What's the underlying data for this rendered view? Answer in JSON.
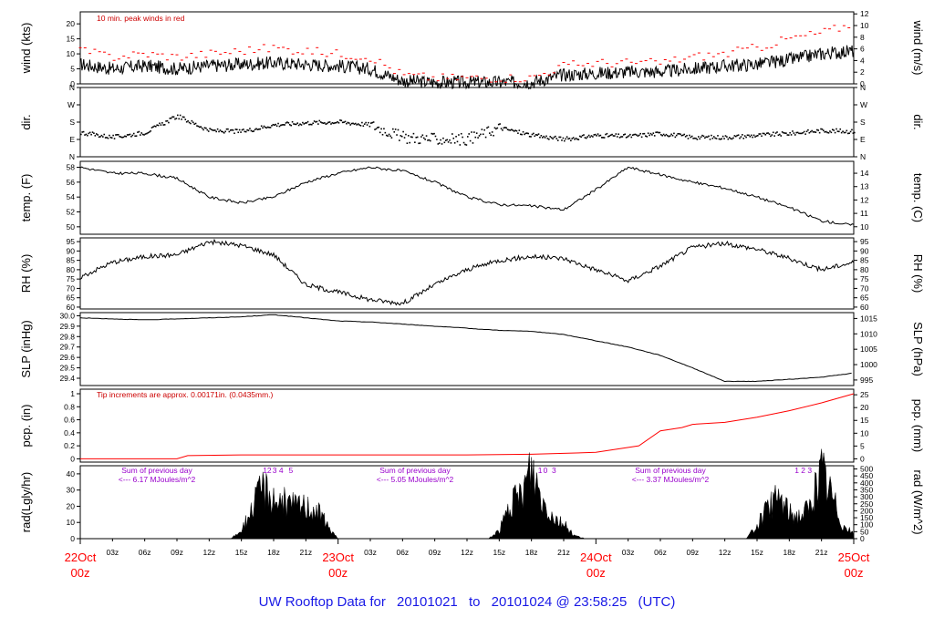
{
  "colors": {
    "frame": "#000000",
    "peak": "#ff0000",
    "precip": "#ff0000",
    "note": "#cc0000",
    "purple": "#9900cc",
    "date": "#ff0000",
    "footer": "#1a1ae6",
    "fill": "#000000"
  },
  "footer": {
    "prefix": "UW Rooftop Data for",
    "start": "20101021",
    "to": "to",
    "end": "20101024 @ 23:58:25",
    "tz": "(UTC)"
  },
  "chart_data": [
    {
      "type": "line",
      "id": "wind",
      "ylabel_left": "wind (kts)",
      "ylabel_right": "wind (m/s)",
      "annotation": "10 min. peak winds in red",
      "ylim": [
        0,
        24
      ],
      "ticks_left": [
        0,
        5,
        10,
        15,
        20
      ],
      "ylim_right": [
        0,
        12.35
      ],
      "ticks_right": [
        0,
        2,
        4,
        6,
        8,
        10,
        12
      ],
      "x": [
        0,
        3,
        6,
        9,
        12,
        15,
        18,
        21,
        24,
        27,
        30,
        33,
        36,
        39,
        42,
        45,
        48,
        51,
        54,
        57,
        60,
        63,
        66,
        69,
        72
      ],
      "series": [
        {
          "name": "wind",
          "values": [
            6.5,
            5,
            6,
            5,
            6,
            6.5,
            7,
            6.5,
            6,
            5,
            1,
            0.5,
            0.5,
            0.5,
            0.5,
            3,
            3.5,
            4,
            4,
            5,
            6,
            6.5,
            8,
            10,
            11
          ]
        },
        {
          "name": "10 min. peak winds",
          "values": [
            11,
            9,
            10,
            9,
            10,
            11,
            12,
            11,
            10,
            9,
            3,
            2,
            2,
            2,
            2,
            6,
            7,
            7,
            7,
            9,
            10,
            12,
            15,
            17,
            20
          ]
        }
      ]
    },
    {
      "type": "scatter",
      "id": "dir",
      "ylabel_left": "dir.",
      "ylabel_right": "dir.",
      "ticks": [
        "N",
        "E",
        "S",
        "W",
        "N"
      ],
      "ylim": [
        0,
        360
      ],
      "x": [
        0,
        3,
        6,
        9,
        12,
        15,
        18,
        21,
        24,
        27,
        30,
        33,
        36,
        39,
        42,
        45,
        48,
        51,
        54,
        57,
        60,
        63,
        66,
        69,
        72
      ],
      "values": [
        125,
        100,
        125,
        210,
        135,
        130,
        165,
        175,
        180,
        165,
        100,
        90,
        90,
        150,
        110,
        90,
        110,
        105,
        120,
        100,
        100,
        110,
        120,
        135,
        130
      ]
    },
    {
      "type": "line",
      "id": "temp",
      "ylabel_left": "temp. (F)",
      "ylabel_right": "temp. (C)",
      "ylim": [
        49,
        58.8
      ],
      "ticks_left": [
        50,
        52,
        54,
        56,
        58
      ],
      "ylim_right": [
        9.44,
        14.89
      ],
      "ticks_right": [
        10,
        11,
        12,
        13,
        14
      ],
      "x": [
        0,
        3,
        6,
        9,
        12,
        15,
        18,
        21,
        24,
        27,
        30,
        33,
        36,
        39,
        42,
        45,
        48,
        51,
        54,
        57,
        60,
        63,
        66,
        69,
        72
      ],
      "values": [
        58,
        57.2,
        57.2,
        56.5,
        54,
        53.2,
        54,
        56,
        57.2,
        58,
        57.5,
        56,
        54,
        53,
        52.8,
        52.3,
        55,
        58,
        57,
        56,
        55.2,
        54,
        52.6,
        50.8,
        50.2
      ]
    },
    {
      "type": "line",
      "id": "rh",
      "ylabel_left": "RH (%)",
      "ylabel_right": "RH (%)",
      "ylim": [
        59,
        97
      ],
      "ticks": [
        60,
        65,
        70,
        75,
        80,
        85,
        90,
        95
      ],
      "x": [
        0,
        3,
        6,
        9,
        12,
        15,
        18,
        21,
        24,
        27,
        30,
        33,
        36,
        39,
        42,
        45,
        48,
        51,
        54,
        57,
        60,
        63,
        66,
        69,
        72
      ],
      "values": [
        76,
        84,
        87,
        88,
        95,
        93,
        88,
        72,
        68,
        64,
        62,
        72,
        80,
        85,
        87,
        86,
        80,
        74,
        82,
        92,
        94,
        91,
        86,
        80,
        84
      ]
    },
    {
      "type": "line",
      "id": "slp",
      "ylabel_left": "SLP (inHg)",
      "ylabel_right": "SLP (hPa)",
      "ylim": [
        29.33,
        30.03
      ],
      "ticks_left": [
        29.4,
        29.5,
        29.6,
        29.7,
        29.8,
        29.9,
        30.0
      ],
      "ylim_right": [
        993.2,
        1016.9
      ],
      "ticks_right": [
        995,
        1000,
        1005,
        1010,
        1015
      ],
      "x": [
        0,
        3,
        6,
        9,
        12,
        15,
        18,
        21,
        24,
        27,
        30,
        33,
        36,
        39,
        42,
        45,
        48,
        51,
        54,
        57,
        60,
        63,
        66,
        69,
        72
      ],
      "values": [
        29.98,
        29.97,
        29.96,
        29.97,
        29.98,
        29.99,
        30.01,
        29.98,
        29.95,
        29.94,
        29.92,
        29.9,
        29.88,
        29.86,
        29.85,
        29.82,
        29.76,
        29.7,
        29.62,
        29.5,
        29.37,
        29.37,
        29.39,
        29.41,
        29.45
      ]
    },
    {
      "type": "line",
      "id": "pcp",
      "ylabel_left": "pcp. (in)",
      "ylabel_right": "pcp. (mm)",
      "annotation": "Tip increments are approx. 0.00171in. (0.0435mm.)",
      "ylim": [
        -0.05,
        1.07
      ],
      "ticks_left": [
        0,
        0.2,
        0.4,
        0.6,
        0.8,
        1.0
      ],
      "ylim_right": [
        -1.27,
        27.18
      ],
      "ticks_right": [
        0,
        5,
        10,
        15,
        20,
        25
      ],
      "x": [
        0,
        6,
        9,
        10,
        15,
        21,
        27,
        30,
        36,
        42,
        48,
        52,
        54,
        56,
        57,
        60,
        63,
        66,
        69,
        72
      ],
      "values": [
        0,
        0,
        0,
        0.05,
        0.06,
        0.06,
        0.06,
        0.06,
        0.06,
        0.07,
        0.1,
        0.2,
        0.43,
        0.48,
        0.53,
        0.56,
        0.64,
        0.74,
        0.86,
        1.0
      ]
    },
    {
      "type": "area",
      "id": "rad",
      "ylabel_left": "rad(Lgly/hr)",
      "ylabel_right": "rad (W/m^2)",
      "ylim": [
        0,
        45
      ],
      "ticks_left": [
        0,
        10,
        20,
        30,
        40
      ],
      "ylim_right": [
        0,
        523
      ],
      "ticks_right": [
        0,
        50,
        100,
        150,
        200,
        250,
        300,
        350,
        400,
        450,
        500
      ],
      "x": [
        0,
        14,
        15,
        16,
        17,
        18,
        19,
        20,
        21,
        22,
        23,
        24,
        38,
        39,
        40,
        41,
        42,
        43,
        44,
        45,
        46,
        47,
        48,
        62,
        63,
        64,
        65,
        66,
        67,
        68,
        69,
        70,
        71,
        72
      ],
      "values": [
        0,
        0,
        5,
        18,
        32,
        25,
        22,
        20,
        20,
        18,
        8,
        0,
        0,
        5,
        20,
        26,
        44,
        24,
        14,
        9,
        2,
        0,
        0,
        0,
        8,
        18,
        26,
        16,
        14,
        20,
        42,
        26,
        8,
        3
      ],
      "daily_sums": [
        "Sum of previous day",
        "<--- 6.17 MJoules/m^2",
        "Sum of previous day",
        "<--- 5.05 MJoules/m^2",
        "Sum of previous day",
        "<--- 3.37 MJoules/m^2"
      ],
      "hour_marks": [
        "1",
        "2",
        "3",
        "4",
        "5",
        "1",
        "0",
        "3",
        "1",
        "2",
        "3"
      ]
    }
  ],
  "time_axis": {
    "xlim": [
      0,
      72
    ],
    "hour_labels": [
      "03z",
      "06z",
      "09z",
      "12z",
      "15z",
      "18z",
      "21z",
      "03z",
      "06z",
      "09z",
      "12z",
      "15z",
      "18z",
      "21z",
      "03z",
      "06z",
      "09z",
      "12z",
      "15z",
      "18z",
      "21z"
    ],
    "day_labels": [
      {
        "top": "22Oct",
        "bottom": "00z"
      },
      {
        "top": "23Oct",
        "bottom": "00z"
      },
      {
        "top": "24Oct",
        "bottom": "00z"
      },
      {
        "top": "25Oct",
        "bottom": "00z"
      }
    ]
  }
}
